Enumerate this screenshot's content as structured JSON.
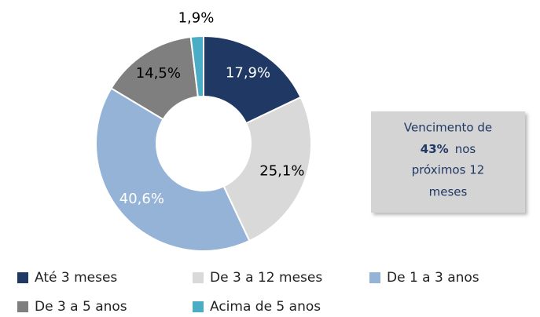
{
  "chart_data": {
    "type": "donut",
    "categories": [
      "Até 3 meses",
      "De 3 a 12 meses",
      "De 1 a 3 anos",
      "De 3 a 5 anos",
      "Acima de 5 anos"
    ],
    "values": [
      17.9,
      25.1,
      40.6,
      14.5,
      1.9
    ],
    "value_labels": [
      "17,9%",
      "25,1%",
      "40,6%",
      "14,5%",
      "1,9%"
    ],
    "colors": [
      "#1f3864",
      "#d9d9d9",
      "#95b3d7",
      "#7f7f7f",
      "#4bacc6"
    ],
    "label_colors": [
      "#ffffff",
      "#000000",
      "#ffffff",
      "#000000",
      "#000000"
    ],
    "legend": "bottom",
    "annotation": {
      "before": "Vencimento de",
      "highlight": "43%",
      "after": "nos",
      "rest": [
        "próximos 12",
        "meses"
      ]
    }
  }
}
